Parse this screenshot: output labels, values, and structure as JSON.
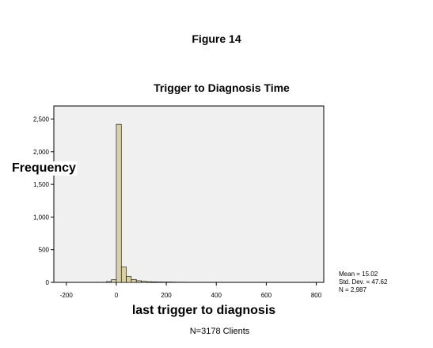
{
  "figure_label": "Figure 14",
  "chart_data": {
    "type": "bar",
    "title": "Trigger to Diagnosis Time",
    "xlabel": "last trigger to diagnosis",
    "ylabel": "Frequency",
    "xlim": [
      -250,
      830
    ],
    "ylim": [
      0,
      2700
    ],
    "xticks": [
      -200,
      0,
      200,
      400,
      600,
      800
    ],
    "xtick_labels": [
      "-200",
      "0",
      "200",
      "400",
      "600",
      "800"
    ],
    "yticks": [
      0,
      500,
      1000,
      1500,
      2000,
      2500
    ],
    "ytick_labels": [
      "0",
      "500",
      "1,000",
      "1,500",
      "2,000",
      "2,500"
    ],
    "bin_width": 20,
    "bins": [
      {
        "x0": -40,
        "x1": -20,
        "count": 12
      },
      {
        "x0": -20,
        "x1": 0,
        "count": 40
      },
      {
        "x0": 0,
        "x1": 20,
        "count": 2420
      },
      {
        "x0": 20,
        "x1": 40,
        "count": 235
      },
      {
        "x0": 40,
        "x1": 60,
        "count": 90
      },
      {
        "x0": 60,
        "x1": 80,
        "count": 45
      },
      {
        "x0": 80,
        "x1": 100,
        "count": 25
      },
      {
        "x0": 100,
        "x1": 120,
        "count": 15
      },
      {
        "x0": 120,
        "x1": 140,
        "count": 10
      },
      {
        "x0": 140,
        "x1": 160,
        "count": 8
      },
      {
        "x0": 160,
        "x1": 180,
        "count": 6
      },
      {
        "x0": 180,
        "x1": 200,
        "count": 5
      },
      {
        "x0": 200,
        "x1": 220,
        "count": 5
      },
      {
        "x0": 220,
        "x1": 240,
        "count": 4
      },
      {
        "x0": 240,
        "x1": 260,
        "count": 3
      },
      {
        "x0": 260,
        "x1": 280,
        "count": 3
      }
    ],
    "stats": {
      "mean": "Mean = 15.02",
      "std_dev": "Std. Dev. = 47.62",
      "n": "N = 2,987"
    },
    "bar_color": "#d9d0a8",
    "bar_stroke": "#000000",
    "plot_background": "#f0f0f0"
  },
  "footnote": "N=3178 Clients"
}
